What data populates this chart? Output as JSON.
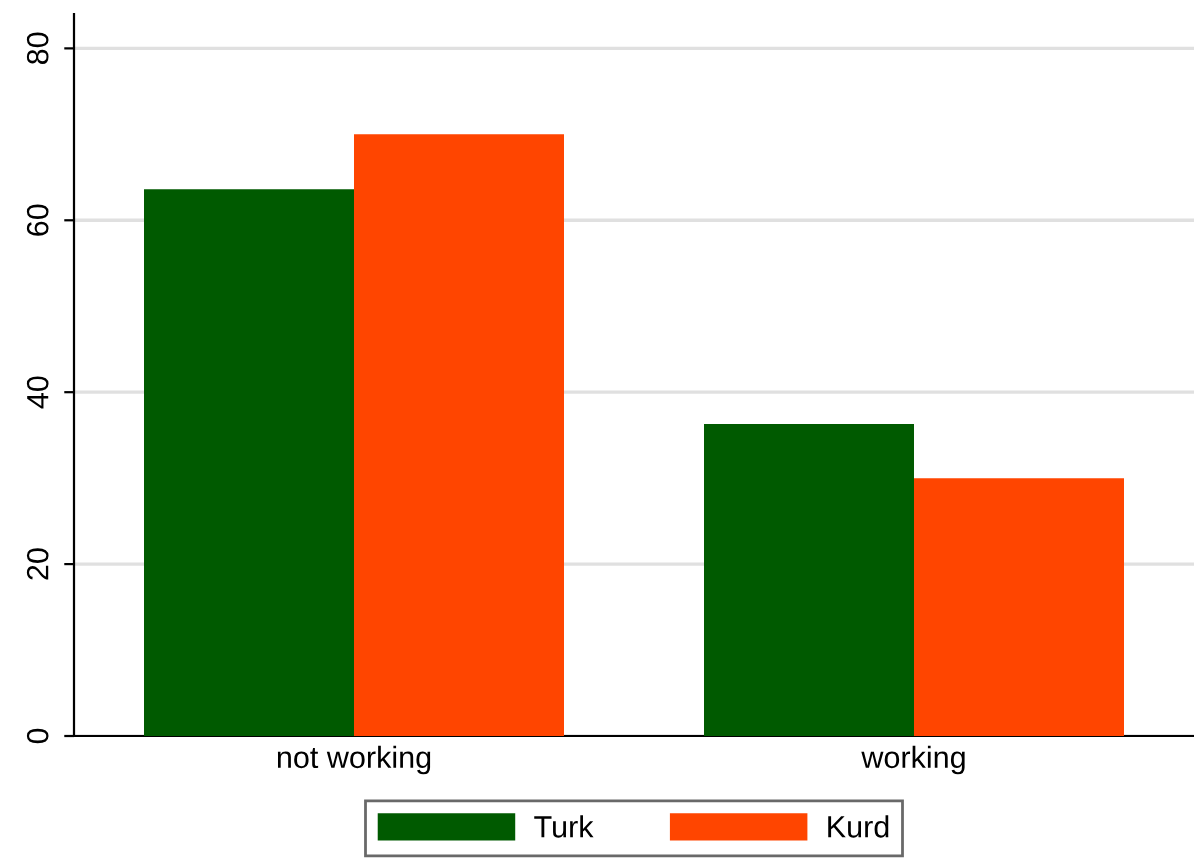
{
  "chart_data": {
    "type": "bar",
    "categories": [
      "not working",
      "working"
    ],
    "series": [
      {
        "name": "Turk",
        "color": "#005a00",
        "values": [
          63.6,
          36.3
        ]
      },
      {
        "name": "Kurd",
        "color": "#ff4500",
        "values": [
          70.0,
          30.0
        ]
      }
    ],
    "ylim": [
      0,
      84
    ],
    "yticks": [
      0,
      20,
      40,
      60,
      80
    ],
    "grid": "y",
    "legend": "bottom"
  }
}
